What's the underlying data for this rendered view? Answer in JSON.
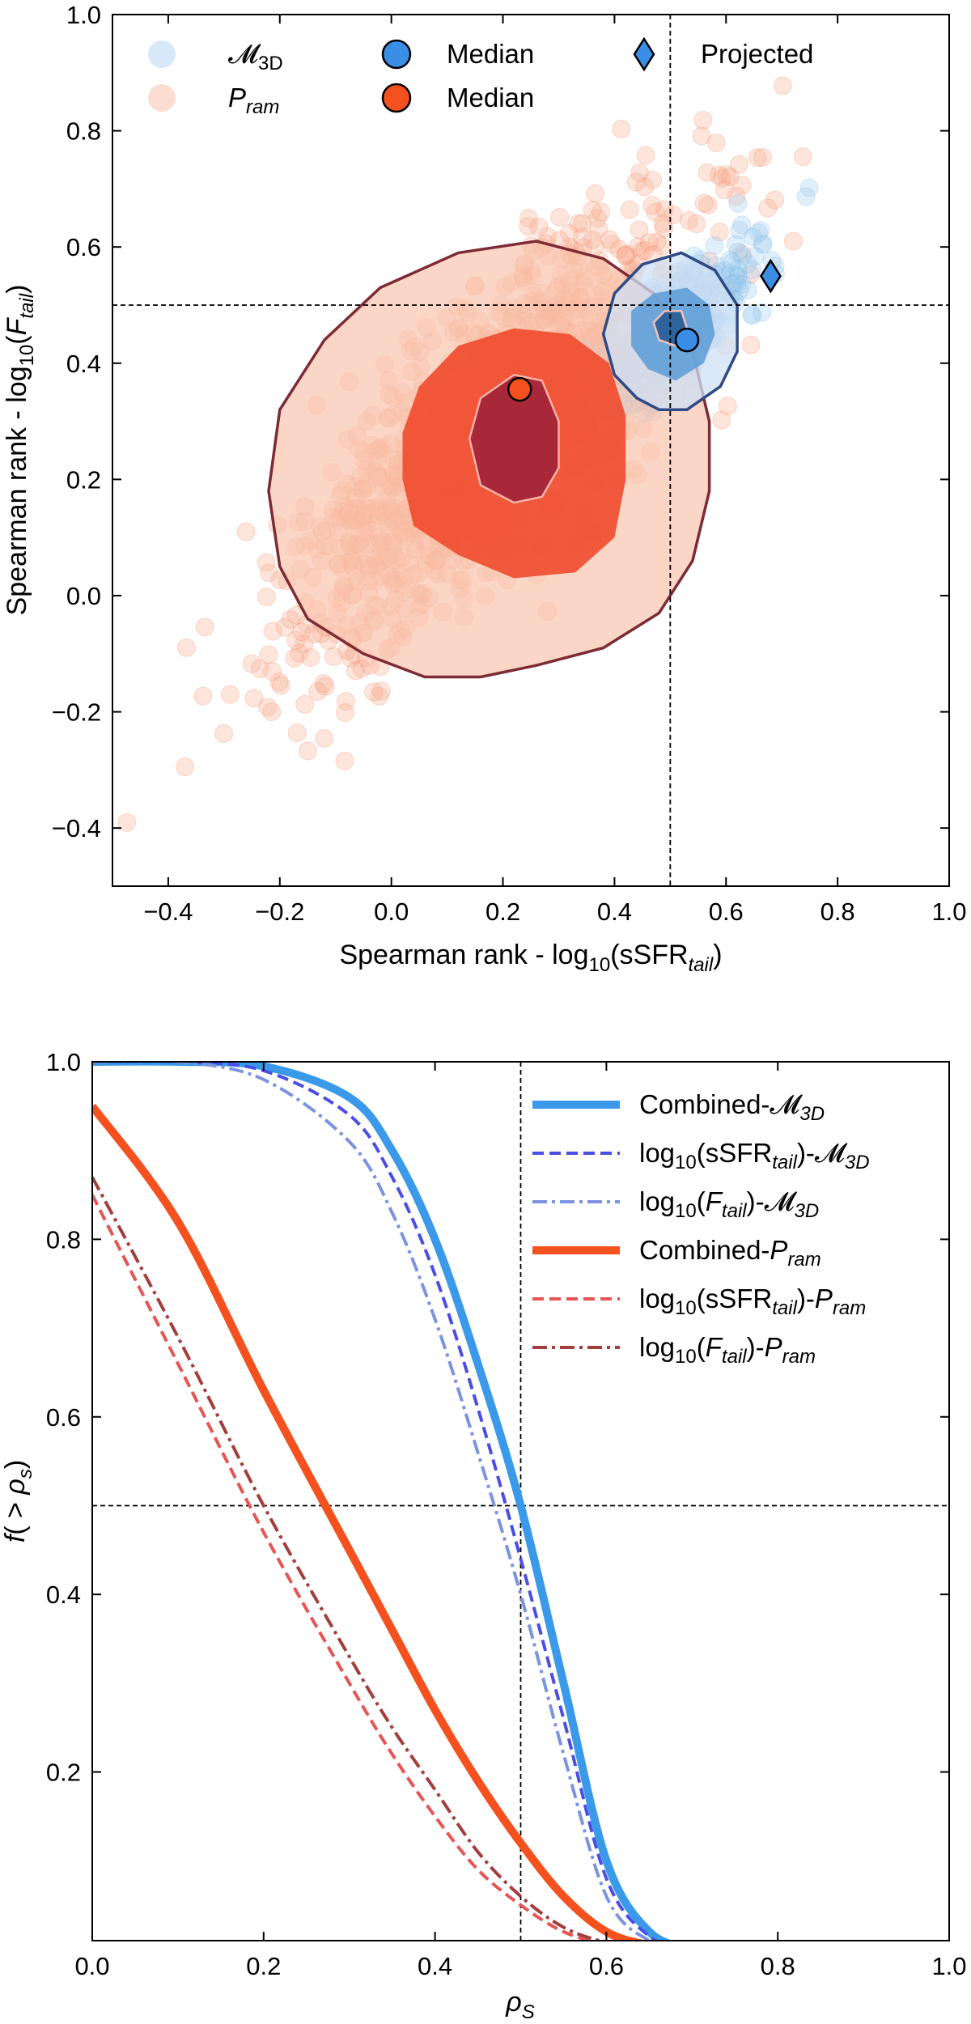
{
  "chart_data": [
    {
      "type": "scatter",
      "title": "",
      "xlabel": "Spearman rank - log10(sSFRtail)",
      "ylabel": "Spearman rank - log10(Ftail)",
      "xlabel_parts": [
        "Spearman rank - log",
        "10",
        "(sSFR",
        "tail",
        ")"
      ],
      "ylabel_parts": [
        "Spearman rank - log",
        "10",
        "(",
        "F",
        "tail",
        ")"
      ],
      "xlim": [
        -0.5,
        1.0
      ],
      "ylim": [
        -0.5,
        1.0
      ],
      "xticks": [
        -0.4,
        -0.2,
        0.0,
        0.2,
        0.4,
        0.6,
        0.8,
        1.0
      ],
      "xtick_labels": [
        "−0.4",
        "−0.2",
        "0.0",
        "0.2",
        "0.4",
        "0.6",
        "0.8",
        "1.0"
      ],
      "yticks": [
        -0.4,
        -0.2,
        0.0,
        0.2,
        0.4,
        0.6,
        0.8,
        1.0
      ],
      "ytick_labels": [
        "−0.4",
        "−0.2",
        "0.0",
        "0.2",
        "0.4",
        "0.6",
        "0.8",
        "1.0"
      ],
      "reference_lines": {
        "x": 0.5,
        "y": 0.5
      },
      "series": [
        {
          "name": "M3D",
          "label": "𝓜",
          "label_sub": "3D",
          "kind": "scatter",
          "color": "#9cc9f0",
          "edge": "#69aee8",
          "opacity": 0.3,
          "center": [
            0.52,
            0.47
          ],
          "spread": [
            0.09,
            0.085
          ],
          "count": 260,
          "seed": 11
        },
        {
          "name": "Pram",
          "label": "P",
          "label_sub": "ram",
          "kind": "scatter",
          "color": "#f9a98b",
          "edge": "#f2784f",
          "opacity": 0.3,
          "center": [
            0.18,
            0.28
          ],
          "spread": [
            0.21,
            0.2
          ],
          "count": 1300,
          "seed": 7
        }
      ],
      "contours": {
        "Pram": {
          "outer": [
            [
              0.06,
              -0.14
            ],
            [
              -0.05,
              -0.1
            ],
            [
              -0.15,
              -0.04
            ],
            [
              -0.2,
              0.05
            ],
            [
              -0.22,
              0.18
            ],
            [
              -0.2,
              0.32
            ],
            [
              -0.12,
              0.44
            ],
            [
              -0.02,
              0.53
            ],
            [
              0.12,
              0.59
            ],
            [
              0.26,
              0.61
            ],
            [
              0.38,
              0.58
            ],
            [
              0.47,
              0.52
            ],
            [
              0.54,
              0.42
            ],
            [
              0.57,
              0.3
            ],
            [
              0.57,
              0.18
            ],
            [
              0.54,
              0.06
            ],
            [
              0.48,
              -0.03
            ],
            [
              0.38,
              -0.09
            ],
            [
              0.26,
              -0.12
            ],
            [
              0.16,
              -0.14
            ]
          ],
          "mid": [
            [
              0.12,
              0.07
            ],
            [
              0.04,
              0.12
            ],
            [
              0.02,
              0.2
            ],
            [
              0.02,
              0.28
            ],
            [
              0.05,
              0.36
            ],
            [
              0.12,
              0.43
            ],
            [
              0.22,
              0.46
            ],
            [
              0.32,
              0.45
            ],
            [
              0.39,
              0.4
            ],
            [
              0.42,
              0.31
            ],
            [
              0.42,
              0.2
            ],
            [
              0.4,
              0.1
            ],
            [
              0.33,
              0.04
            ],
            [
              0.22,
              0.03
            ]
          ],
          "inner": [
            [
              0.22,
              0.16
            ],
            [
              0.16,
              0.19
            ],
            [
              0.14,
              0.27
            ],
            [
              0.16,
              0.34
            ],
            [
              0.22,
              0.38
            ],
            [
              0.27,
              0.37
            ],
            [
              0.3,
              0.3
            ],
            [
              0.3,
              0.22
            ],
            [
              0.27,
              0.17
            ]
          ]
        },
        "M3D": {
          "outer": [
            [
              0.44,
              0.34
            ],
            [
              0.4,
              0.38
            ],
            [
              0.38,
              0.45
            ],
            [
              0.4,
              0.52
            ],
            [
              0.45,
              0.57
            ],
            [
              0.52,
              0.59
            ],
            [
              0.58,
              0.56
            ],
            [
              0.62,
              0.5
            ],
            [
              0.62,
              0.42
            ],
            [
              0.59,
              0.36
            ],
            [
              0.53,
              0.32
            ],
            [
              0.48,
              0.32
            ]
          ],
          "mid": [
            [
              0.46,
              0.39
            ],
            [
              0.43,
              0.43
            ],
            [
              0.43,
              0.49
            ],
            [
              0.47,
              0.52
            ],
            [
              0.53,
              0.53
            ],
            [
              0.57,
              0.5
            ],
            [
              0.58,
              0.45
            ],
            [
              0.56,
              0.4
            ],
            [
              0.51,
              0.37
            ]
          ],
          "inner": [
            [
              0.48,
              0.44
            ],
            [
              0.47,
              0.47
            ],
            [
              0.49,
              0.49
            ],
            [
              0.52,
              0.49
            ],
            [
              0.53,
              0.46
            ],
            [
              0.51,
              0.43
            ]
          ]
        }
      },
      "medians": [
        {
          "name": "M3D median",
          "x": 0.53,
          "y": 0.44,
          "color": "#3a8ee6"
        },
        {
          "name": "Pram median",
          "x": 0.23,
          "y": 0.355,
          "color": "#f4511e"
        }
      ],
      "projected": {
        "name": "Projected",
        "x": 0.68,
        "y": 0.55,
        "color": "#3a8ee6"
      },
      "legend": {
        "location": "top",
        "entries": [
          {
            "label": "𝓜",
            "sub": "3D",
            "italic": false
          },
          {
            "label": "Median",
            "sub": "",
            "italic": false
          },
          {
            "label": "Projected",
            "sub": "",
            "italic": false
          },
          {
            "label": "P",
            "sub": "ram",
            "italic": true
          },
          {
            "label": "Median",
            "sub": "",
            "italic": false
          }
        ]
      }
    },
    {
      "type": "line",
      "title": "",
      "xlabel": "ρS",
      "ylabel": "f(> ρs)",
      "xlabel_parts": [
        "ρ",
        "S"
      ],
      "ylabel_parts": [
        "f",
        "( > ",
        "ρ",
        "s",
        ")"
      ],
      "xlim": [
        0.0,
        1.0
      ],
      "ylim": [
        0.01,
        1.0
      ],
      "xticks": [
        0.0,
        0.2,
        0.4,
        0.6,
        0.8,
        1.0
      ],
      "xtick_labels": [
        "0.0",
        "0.2",
        "0.4",
        "0.6",
        "0.8",
        "1.0"
      ],
      "yticks": [
        0.2,
        0.4,
        0.6,
        0.8,
        1.0
      ],
      "ytick_labels": [
        "0.2",
        "0.4",
        "0.6",
        "0.8",
        "1.0"
      ],
      "reference_lines": {
        "x": 0.5,
        "y": 0.5
      },
      "x": [
        0.0,
        0.1,
        0.2,
        0.3,
        0.35,
        0.4,
        0.45,
        0.5,
        0.55,
        0.6,
        0.65,
        0.7
      ],
      "series": [
        {
          "name": "Combined-M3D",
          "label_main": "Combined-𝓜",
          "label_sub": "3D",
          "label_tail": "",
          "color": "#3a9ae9",
          "dash": "solid",
          "width": 10,
          "values": [
            1.0,
            1.0,
            0.995,
            0.96,
            0.9,
            0.8,
            0.66,
            0.5,
            0.3,
            0.1,
            0.02,
            0.0
          ]
        },
        {
          "name": "log10(sSFRtail)-M3D",
          "label_main": "log",
          "label_sub": "10",
          "label_tail": "(sSFR",
          "label_sub2": "tail",
          "label_end": ")-𝓜",
          "label_sub3": "3D",
          "color": "#4b4ee6",
          "dash": "dashed",
          "width": 4,
          "values": [
            1.0,
            1.0,
            0.99,
            0.94,
            0.87,
            0.76,
            0.61,
            0.44,
            0.26,
            0.08,
            0.015,
            0.0
          ]
        },
        {
          "name": "log10(Ftail)-M3D",
          "label_main": "log",
          "label_sub": "10",
          "label_tail": "(F",
          "label_sub2": "tail",
          "label_end": ")-𝓜",
          "label_sub3": "3D",
          "italic_f": true,
          "color": "#7b94e0",
          "dash": "dashdot",
          "width": 4,
          "values": [
            1.0,
            1.0,
            0.98,
            0.91,
            0.83,
            0.71,
            0.56,
            0.4,
            0.22,
            0.06,
            0.01,
            0.0
          ]
        },
        {
          "name": "Combined-Pram",
          "label_main": "Combined-",
          "label_sub": "",
          "label_tail": "P",
          "label_sub2": "ram",
          "color": "#f4511e",
          "dash": "solid",
          "width": 10,
          "values": [
            0.95,
            0.82,
            0.63,
            0.45,
            0.36,
            0.27,
            0.19,
            0.12,
            0.06,
            0.02,
            0.005,
            0.0
          ]
        },
        {
          "name": "log10(sSFRtail)-Pram",
          "label_main": "log",
          "label_sub": "10",
          "label_tail": "(sSFR",
          "label_sub2": "tail",
          "label_end": ")-",
          "label_sub3": "ram",
          "color": "#e65454",
          "dash": "dashed",
          "width": 4,
          "values": [
            0.85,
            0.66,
            0.47,
            0.3,
            0.22,
            0.15,
            0.09,
            0.05,
            0.02,
            0.006,
            0.0,
            0.0
          ]
        },
        {
          "name": "log10(Ftail)-Pram",
          "label_main": "log",
          "label_sub": "10",
          "label_tail": "(F",
          "label_sub2": "tail",
          "label_end": ")-",
          "label_sub3": "ram",
          "italic_f": true,
          "color": "#a23e3c",
          "dash": "dashdot",
          "width": 4,
          "values": [
            0.87,
            0.69,
            0.5,
            0.33,
            0.25,
            0.18,
            0.11,
            0.06,
            0.025,
            0.008,
            0.0,
            0.0
          ]
        }
      ],
      "legend": {
        "location": "top-right",
        "entries": [
          {
            "text": "Combined-𝓜",
            "sub": "3D"
          },
          {
            "text": "log10(sSFRtail)-𝓜3D"
          },
          {
            "text": "log10(Ftail)-𝓜3D"
          },
          {
            "text": "Combined-Pram"
          },
          {
            "text": "log10(sSFRtail)-Pram"
          },
          {
            "text": "log10(Ftail)-Pram"
          }
        ],
        "labels": {
          "l0": "Combined-𝓜",
          "l0s": "3D",
          "l1a": "log",
          "l1b": "10",
          "l1c": "(sSFR",
          "l1d": "tail",
          "l1e": ")-𝓜",
          "l1f": "3D",
          "l2a": "log",
          "l2b": "10",
          "l2c": "(",
          "l2d": "F",
          "l2e": "tail",
          "l2f": ")-𝓜",
          "l2g": "3D",
          "l3a": "Combined-",
          "l3b": "P",
          "l3c": "ram",
          "l4a": "log",
          "l4b": "10",
          "l4c": "(sSFR",
          "l4d": "tail",
          "l4e": ")-",
          "l4f": "P",
          "l4g": "ram",
          "l5a": "log",
          "l5b": "10",
          "l5c": "(",
          "l5d": "F",
          "l5e": "tail",
          "l5f": ")-",
          "l5g": "P",
          "l5h": "ram"
        }
      }
    }
  ]
}
